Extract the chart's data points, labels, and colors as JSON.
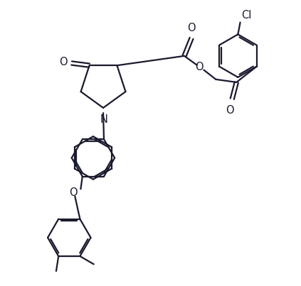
{
  "bg_color": "#ffffff",
  "line_color": "#1a1a2e",
  "line_width": 1.6,
  "font_size": 10.5,
  "figsize": [
    4.23,
    4.03
  ],
  "dpi": 100,
  "xlim": [
    0,
    10.5
  ],
  "ylim": [
    0,
    10.0
  ]
}
